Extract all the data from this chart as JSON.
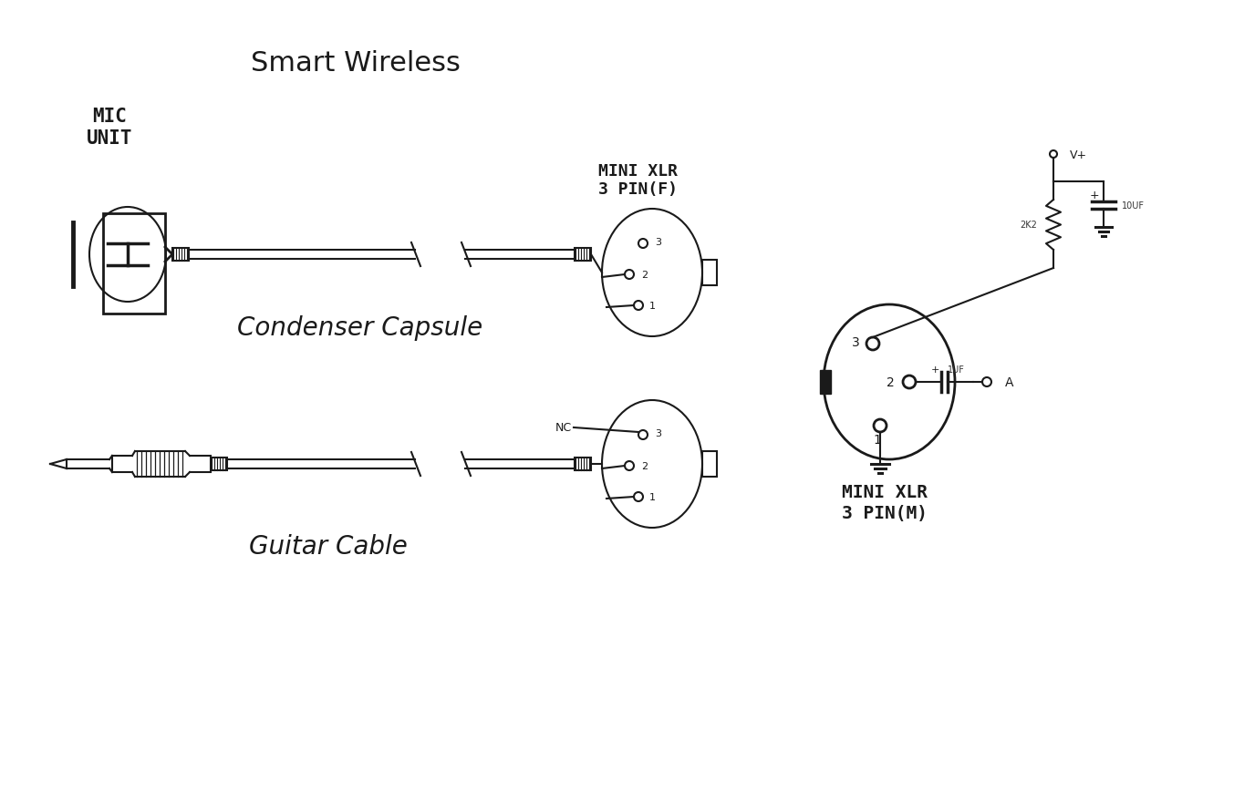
{
  "bg_color": "#ffffff",
  "title": "Smart Wireless",
  "line_color": "#1a1a1a",
  "mic_unit_label": "MIC\nUNIT",
  "condenser_label": "Condenser Capsule",
  "guitar_label": "Guitar Cable",
  "mini_xlr_f_label": "MINI XLR\n3 PIN(F)",
  "mini_xlr_m_label": "MINI XLR\n3 PIN(M)"
}
